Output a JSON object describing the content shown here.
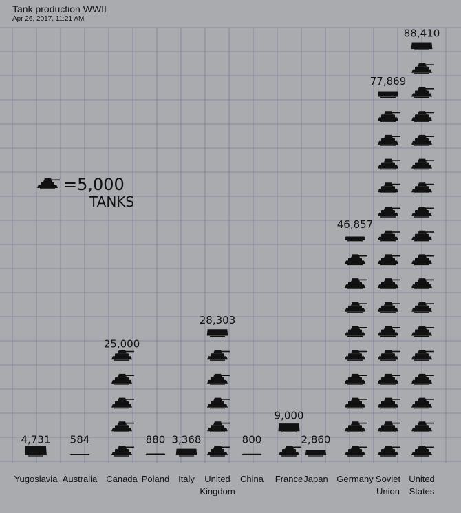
{
  "header": {
    "title": "Tank production WWII",
    "timestamp": "Apr 26, 2017, 11:21 AM"
  },
  "legend": {
    "equals_text": "=5,000",
    "unit_text": "TANKS",
    "tanks_per_icon": 5000
  },
  "chart_data": {
    "type": "bar",
    "categories": [
      "Yugoslavia",
      "Australia",
      "Canada",
      "Poland",
      "Italy",
      "United Kingdom",
      "China",
      "France",
      "Japan",
      "Germany",
      "Soviet Union",
      "United States"
    ],
    "values": [
      4731,
      584,
      25000,
      880,
      3368,
      28303,
      800,
      9000,
      2860,
      46857,
      77869,
      88410
    ],
    "value_labels": [
      "4,731",
      "584",
      "25,000",
      "880",
      "3,368",
      "28,303",
      "800",
      "9,000",
      "2,860",
      "46,857",
      "77,869",
      "88,410"
    ],
    "title": "Tank production WWII",
    "xlabel": "",
    "ylabel": "",
    "grid": true
  },
  "colors": {
    "background": "#a9abae",
    "grid": "#6b7391",
    "ink": "#111111"
  }
}
